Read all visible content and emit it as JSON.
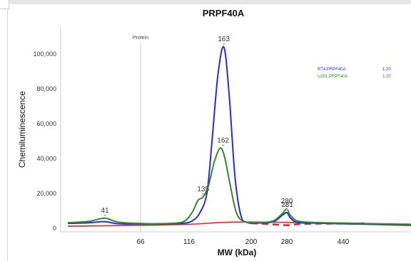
{
  "chart_data": {
    "type": "line",
    "title": "PRPF40A",
    "xlabel": "MW (kDa)",
    "ylabel": "Chemiluminescence",
    "x_ticks": [
      "66",
      "116",
      "200",
      "280",
      "440"
    ],
    "y_ticks": [
      "0",
      "20,000",
      "40,000",
      "60,000",
      "80,000",
      "100,000"
    ],
    "ylim": [
      0,
      115000
    ],
    "grid": false,
    "legend_position": "top-right",
    "marker": {
      "label": "Protein",
      "x": 66
    },
    "series": [
      {
        "name": "RT4:PRPF40A",
        "dilution": "1:20",
        "color": "#2b2bcf",
        "points": [
          [
            15,
            2800
          ],
          [
            30,
            3200
          ],
          [
            41,
            3800
          ],
          [
            50,
            2600
          ],
          [
            66,
            2500
          ],
          [
            90,
            2600
          ],
          [
            110,
            2900
          ],
          [
            120,
            4200
          ],
          [
            130,
            8500
          ],
          [
            140,
            20000
          ],
          [
            147,
            50000
          ],
          [
            155,
            88000
          ],
          [
            163,
            104000
          ],
          [
            170,
            78000
          ],
          [
            178,
            30000
          ],
          [
            186,
            7500
          ],
          [
            195,
            3300
          ],
          [
            220,
            3000
          ],
          [
            250,
            3800
          ],
          [
            270,
            7500
          ],
          [
            280,
            9000
          ],
          [
            290,
            6000
          ],
          [
            310,
            3300
          ],
          [
            360,
            3000
          ],
          [
            440,
            2600
          ],
          [
            600,
            2400
          ],
          [
            900,
            2000
          ]
        ]
      },
      {
        "name": "U251:PRPF40A",
        "dilution": "1:20",
        "color": "#2e8b2e",
        "points": [
          [
            15,
            3200
          ],
          [
            30,
            4000
          ],
          [
            41,
            5800
          ],
          [
            50,
            3600
          ],
          [
            66,
            2800
          ],
          [
            90,
            2700
          ],
          [
            110,
            3800
          ],
          [
            120,
            9000
          ],
          [
            128,
            16000
          ],
          [
            135,
            18000
          ],
          [
            142,
            24000
          ],
          [
            150,
            38000
          ],
          [
            158,
            46000
          ],
          [
            164,
            41000
          ],
          [
            172,
            24000
          ],
          [
            180,
            9000
          ],
          [
            190,
            4000
          ],
          [
            220,
            3200
          ],
          [
            250,
            4300
          ],
          [
            270,
            8500
          ],
          [
            280,
            11000
          ],
          [
            290,
            7500
          ],
          [
            310,
            4200
          ],
          [
            360,
            3300
          ],
          [
            440,
            3000
          ],
          [
            600,
            2700
          ],
          [
            900,
            2300
          ]
        ]
      }
    ],
    "baselines": [
      {
        "color": "#d42a2a",
        "style": "solid",
        "points": [
          [
            15,
            1200
          ],
          [
            66,
            1700
          ],
          [
            116,
            2300
          ],
          [
            163,
            3400
          ],
          [
            200,
            3600
          ],
          [
            280,
            3400
          ],
          [
            440,
            2600
          ],
          [
            900,
            1600
          ]
        ]
      },
      {
        "color": "#d42a2a",
        "style": "dashed",
        "points": [
          [
            200,
            2900
          ],
          [
            240,
            2400
          ],
          [
            280,
            1800
          ],
          [
            330,
            2500
          ],
          [
            440,
            2700
          ],
          [
            600,
            2900
          ]
        ]
      }
    ],
    "peak_labels": [
      {
        "label": "41",
        "x": 41,
        "y": 5800
      },
      {
        "label": "135",
        "x": 135,
        "y": 18000
      },
      {
        "label": "162",
        "x": 162,
        "y": 46000
      },
      {
        "label": "163",
        "x": 163,
        "y": 104000
      },
      {
        "label": "280",
        "x": 280,
        "y": 11000
      },
      {
        "label": "281",
        "x": 281,
        "y": 9000
      }
    ]
  }
}
